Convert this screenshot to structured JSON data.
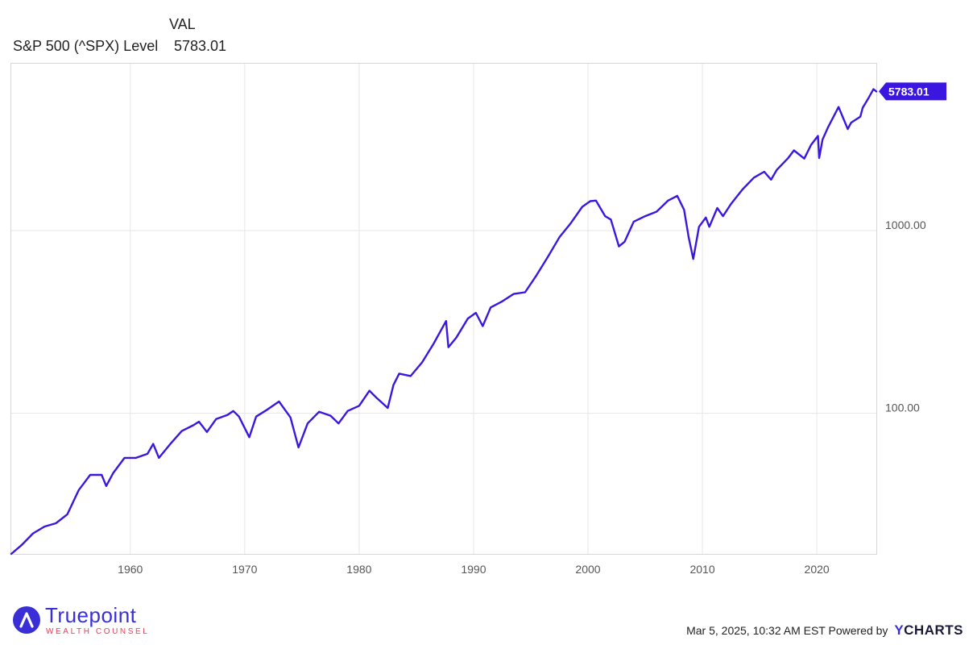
{
  "legend": {
    "header": "VAL",
    "series_label": "S&P 500 (^SPX) Level",
    "series_value": "5783.01"
  },
  "footer": {
    "logo_name": "Truepoint",
    "logo_tagline": "WEALTH COUNSEL",
    "timestamp_text": "Mar 5, 2025, 10:32 AM EST Powered by",
    "brand_y": "Y",
    "brand_rest": "CHARTS"
  },
  "colors": {
    "series": "#3a16e0",
    "grid": "#e6e6e6",
    "axis_text": "#555555",
    "logo_blue": "#3a2fd6",
    "logo_red": "#e2425a"
  },
  "chart_data": {
    "type": "line",
    "y_scale": "log",
    "ylim": [
      17,
      8200
    ],
    "xlim": [
      1949.6,
      2025.2
    ],
    "x_ticks": [
      1960,
      1970,
      1980,
      1990,
      2000,
      2010,
      2020
    ],
    "x_tick_labels": [
      "1960",
      "1970",
      "1980",
      "1990",
      "2000",
      "2010",
      "2020"
    ],
    "y_ticks": [
      100,
      1000
    ],
    "y_tick_labels": [
      "100.00",
      "1000.00"
    ],
    "last_value_label": "5783.01",
    "series": [
      {
        "name": "S&P 500 (^SPX) Level",
        "x": [
          1949.6,
          1950.5,
          1951.5,
          1952.5,
          1953.5,
          1954.5,
          1955.5,
          1956.5,
          1957.5,
          1957.9,
          1958.5,
          1959.5,
          1960.5,
          1961.5,
          1962.0,
          1962.5,
          1963.5,
          1964.5,
          1965.5,
          1966.0,
          1966.7,
          1967.5,
          1968.5,
          1969.0,
          1969.5,
          1970.4,
          1971.0,
          1972.0,
          1973.0,
          1974.0,
          1974.7,
          1975.5,
          1976.5,
          1977.5,
          1978.2,
          1979.0,
          1980.0,
          1980.9,
          1981.5,
          1982.5,
          1983.0,
          1983.5,
          1984.5,
          1985.5,
          1986.5,
          1987.6,
          1987.8,
          1988.5,
          1989.5,
          1990.2,
          1990.8,
          1991.5,
          1992.5,
          1993.5,
          1994.5,
          1995.5,
          1996.5,
          1997.5,
          1998.5,
          1999.5,
          2000.2,
          2000.7,
          2001.5,
          2002.0,
          2002.7,
          2003.2,
          2004.0,
          2005.0,
          2006.0,
          2007.0,
          2007.8,
          2008.4,
          2008.8,
          2009.2,
          2009.7,
          2010.3,
          2010.6,
          2011.3,
          2011.8,
          2012.5,
          2013.5,
          2014.5,
          2015.4,
          2016.0,
          2016.5,
          2017.5,
          2018.0,
          2018.9,
          2019.5,
          2020.1,
          2020.2,
          2020.5,
          2021.0,
          2021.9,
          2022.7,
          2023.0,
          2023.8,
          2024.0,
          2024.5,
          2024.95,
          2025.2
        ],
        "y": [
          17,
          19,
          22,
          24,
          25,
          28,
          38,
          46,
          46,
          40,
          47,
          57,
          57,
          60,
          68,
          57,
          68,
          80,
          86,
          90,
          79,
          93,
          98,
          103,
          96,
          74,
          96,
          105,
          116,
          95,
          65,
          88,
          102,
          97,
          88,
          103,
          110,
          133,
          122,
          107,
          143,
          165,
          160,
          190,
          240,
          320,
          230,
          260,
          330,
          355,
          300,
          380,
          410,
          450,
          460,
          570,
          720,
          920,
          1100,
          1350,
          1450,
          1460,
          1200,
          1150,
          820,
          870,
          1120,
          1200,
          1270,
          1460,
          1550,
          1300,
          920,
          700,
          1050,
          1180,
          1050,
          1330,
          1200,
          1400,
          1680,
          1950,
          2100,
          1900,
          2150,
          2500,
          2750,
          2480,
          2950,
          3300,
          2500,
          3150,
          3700,
          4750,
          3600,
          3900,
          4200,
          4700,
          5300,
          5950,
          5783
        ]
      }
    ]
  }
}
